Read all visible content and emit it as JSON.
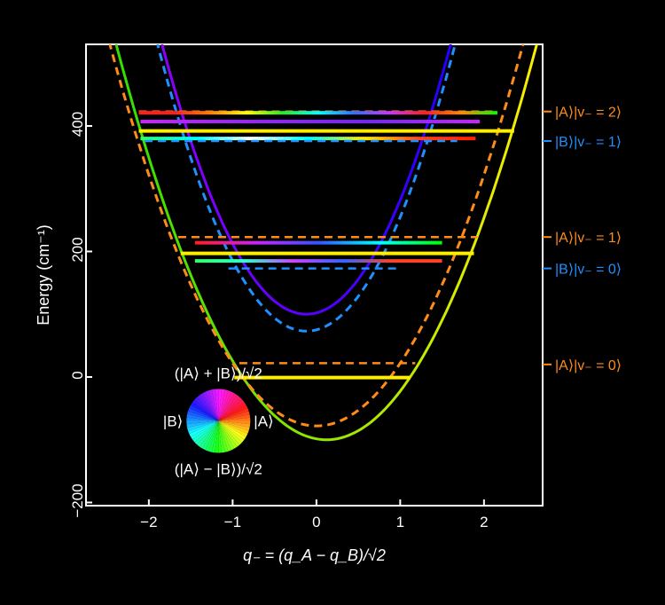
{
  "chart_data": {
    "type": "line",
    "xlabel": "q₋ = (q_A − q_B)/√2",
    "ylabel": "Energy (cm⁻¹)",
    "xlim": [
      -2.75,
      2.7
    ],
    "ylim": [
      -205,
      530
    ],
    "xticks": [
      -2,
      -1,
      0,
      1,
      2
    ],
    "yticks": [
      -200,
      0,
      200,
      400
    ],
    "grid": false,
    "curves": [
      {
        "id": "lower-adiabatic",
        "style": "solid",
        "gradient": [
          "#22dd00",
          "#ffee00"
        ],
        "vertex": [
          0.12,
          -100
        ],
        "k": 100
      },
      {
        "id": "upper-adiabatic",
        "style": "solid",
        "gradient": [
          "#aa00ff",
          "#0000ff"
        ],
        "vertex": [
          -0.12,
          100
        ],
        "k": 145
      },
      {
        "id": "diabatic-A",
        "style": "dashed",
        "color": "#ff8c1a",
        "vertex": [
          0.0,
          -78
        ],
        "k": 100
      },
      {
        "id": "diabatic-B",
        "style": "dashed",
        "color": "#1e90ff",
        "vertex": [
          -0.12,
          73
        ],
        "k": 145
      }
    ],
    "levels": [
      {
        "id": "A-v2",
        "style": "dashed",
        "color": "#ff8c1a",
        "y": 423,
        "x": [
          -2.12,
          2.16
        ]
      },
      {
        "id": "mix-421",
        "style": "solid",
        "colors": [
          "#ff1e1e",
          "#ff1e1e",
          "#ff8000",
          "#ffff00",
          "#22ee22",
          "#00ffff",
          "#3070ff",
          "#cc33ff",
          "#ff1e1e",
          "#ff8800",
          "#00ff00"
        ],
        "y": 421,
        "x": [
          -2.12,
          2.16
        ]
      },
      {
        "id": "mix-407",
        "style": "solid",
        "colors": [
          "#cc22ff",
          "#9922ff",
          "#7722ff",
          "#cc22ff"
        ],
        "y": 407,
        "x": [
          -2.1,
          1.95
        ]
      },
      {
        "id": "mix-392",
        "style": "solid",
        "colors": [
          "#ffee00",
          "#ffee00"
        ],
        "y": 392,
        "x": [
          -2.12,
          2.36
        ]
      },
      {
        "id": "mix-380",
        "style": "solid",
        "colors": [
          "#33ff66",
          "#00ffff",
          "#ffffff",
          "#00ffff",
          "#ffee00",
          "#ff4422",
          "#ff2200"
        ],
        "y": 380,
        "x": [
          -2.1,
          1.9
        ]
      },
      {
        "id": "B-v1",
        "style": "dashed",
        "color": "#1e90ff",
        "y": 376,
        "x": [
          -2.05,
          1.68
        ]
      },
      {
        "id": "A-v1",
        "style": "dashed",
        "color": "#ff8c1a",
        "y": 223,
        "x": [
          -1.65,
          1.92
        ]
      },
      {
        "id": "mix-214",
        "style": "solid",
        "colors": [
          "#ff1e1e",
          "#cc22ff",
          "#3355ff",
          "#00ffff",
          "#00ff00"
        ],
        "y": 214,
        "x": [
          -1.45,
          1.5
        ]
      },
      {
        "id": "mix-197",
        "style": "solid",
        "colors": [
          "#ffee00",
          "#ffee00"
        ],
        "y": 197,
        "x": [
          -1.62,
          1.88
        ]
      },
      {
        "id": "mix-185",
        "style": "solid",
        "colors": [
          "#33ff66",
          "#33ffcc",
          "#cc44ff",
          "#3366ff",
          "#ff4422",
          "#ff4422"
        ],
        "y": 185,
        "x": [
          -1.45,
          1.5
        ]
      },
      {
        "id": "B-v0",
        "style": "dashed",
        "color": "#1e90ff",
        "y": 173,
        "x": [
          -1.05,
          1.0
        ]
      },
      {
        "id": "A-v0",
        "style": "dashed",
        "color": "#ff8c1a",
        "y": 22,
        "x": [
          -0.92,
          1.18
        ]
      },
      {
        "id": "mix-0",
        "style": "solid",
        "colors": [
          "#ffee00",
          "#ffee00"
        ],
        "y": -1,
        "x": [
          -0.98,
          1.12
        ]
      }
    ],
    "state_labels": [
      {
        "text": "|A⟩|v₋ = 2⟩",
        "y": 423,
        "color": "#ff8c1a"
      },
      {
        "text": "|B⟩|v₋ = 1⟩",
        "y": 376,
        "color": "#1e90ff"
      },
      {
        "text": "|A⟩|v₋ = 1⟩",
        "y": 223,
        "color": "#ff8c1a"
      },
      {
        "text": "|B⟩|v₋ = 0⟩",
        "y": 173,
        "color": "#1e90ff"
      },
      {
        "text": "|A⟩|v₋ = 0⟩",
        "y": 20,
        "color": "#ff8c1a"
      }
    ],
    "color_wheel": {
      "top": "(|A⟩ + |B⟩)/√2",
      "bottom": "(|A⟩ − |B⟩)/√2",
      "left": "|B⟩",
      "right": "|A⟩"
    }
  }
}
